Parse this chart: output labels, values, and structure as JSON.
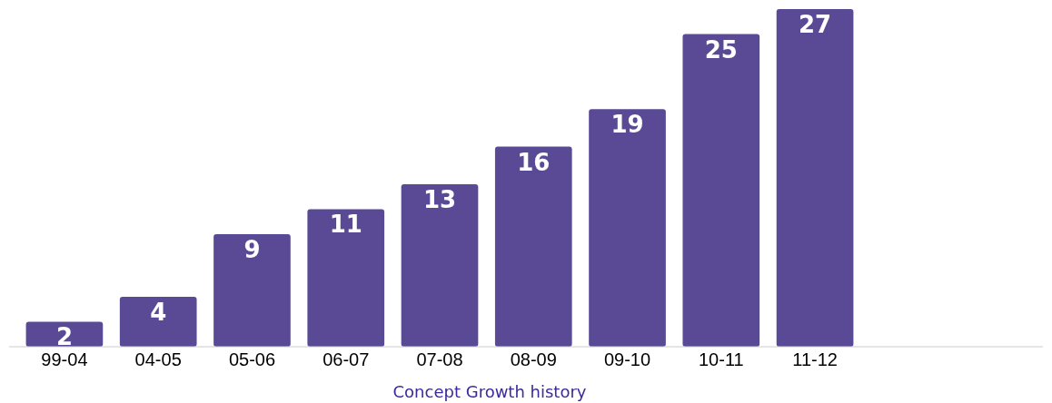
{
  "chart_data": {
    "type": "bar",
    "title": "Concept Growth history",
    "categories": [
      "99-04",
      "04-05",
      "05-06",
      "06-07",
      "07-08",
      "08-09",
      "09-10",
      "10-11",
      "11-12"
    ],
    "values": [
      2,
      4,
      9,
      11,
      13,
      16,
      19,
      25,
      27
    ],
    "color": "#5a4a96",
    "data_labels": true
  }
}
